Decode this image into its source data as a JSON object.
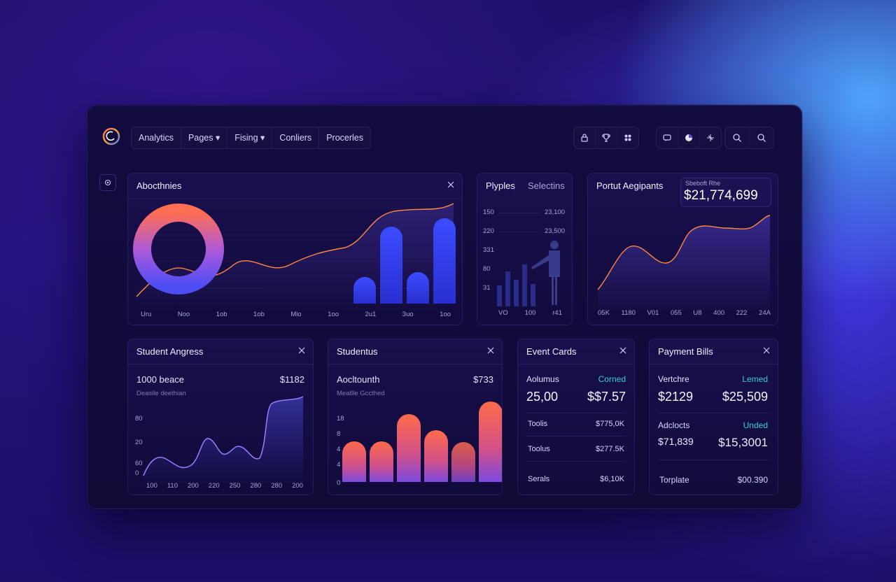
{
  "nav": {
    "items": [
      {
        "label": "Analytics"
      },
      {
        "label": "Pages ▾"
      },
      {
        "label": "Fising ▾"
      },
      {
        "label": "Conliers"
      },
      {
        "label": "Procerles"
      }
    ]
  },
  "toolbar": {
    "group1_icons": [
      "lock-icon",
      "trophy-icon",
      "grid-icon"
    ],
    "group2_icons": [
      "chat-icon",
      "pie-icon",
      "sparkle-icon"
    ],
    "group3_icons": [
      "search-icon",
      "search-icon"
    ]
  },
  "colors": {
    "accent": "#4a4df5",
    "orange": "#ff6e4a",
    "teal": "#35d0d0",
    "purple": "#9b7dff"
  },
  "cards": {
    "activities": {
      "title": "Abocthnies",
      "x_labels": [
        "Uru",
        "Noo",
        "1ob",
        "1ob",
        "Mio",
        "1oo",
        "2u1",
        "3uo",
        "1oo"
      ]
    },
    "players": {
      "title_a": "Plyples",
      "title_b": "Selectins",
      "rows": [
        {
          "left": "150",
          "right": "23,100"
        },
        {
          "left": "220",
          "right": "23,500"
        },
        {
          "left": "331",
          "right": ""
        },
        {
          "left": "80",
          "right": ""
        },
        {
          "left": "31",
          "right": ""
        }
      ],
      "x_labels": [
        "VO",
        "100",
        "r41"
      ]
    },
    "payment": {
      "title": "Portut Aegipants",
      "badge_label": "Sbeboft Rhe",
      "badge_value": "$21,774,699",
      "x_labels": [
        "05K",
        "1180",
        "V01",
        "055",
        "U8",
        "400",
        "222",
        "24A"
      ]
    },
    "student_progress": {
      "title": "Student Angress",
      "stat_label": "1000 beace",
      "stat_value": "$1182",
      "sub": "Deaslle deethian",
      "y_labels": [
        "80",
        "20",
        "60",
        "0"
      ],
      "x_labels": [
        "100",
        "110",
        "200",
        "220",
        "250",
        "280",
        "280",
        "200"
      ]
    },
    "students": {
      "title": "Studentus",
      "stat_label": "Aocltounth",
      "stat_value": "$733",
      "sub": "Meatlle Gccthed",
      "y_labels": [
        "18",
        "8",
        "4",
        "4",
        "4",
        "0"
      ]
    },
    "event_cards": {
      "title": "Event Cards",
      "head_left": "Aolumus",
      "head_right": "Corned",
      "big_left": "25,00",
      "big_right": "$$7.57",
      "rows": [
        {
          "label": "Toolis",
          "value": "$775,0K"
        },
        {
          "label": "Toolus",
          "value": "$277.5K"
        },
        {
          "label": "Serals",
          "value": "$6,10K"
        }
      ]
    },
    "payment_bills": {
      "title": "Payment Bills",
      "head_left": "Vertchre",
      "head_right": "Lemed",
      "big_left": "$2129",
      "big_right": "$25,509",
      "sub_left": "Adclocts",
      "sub_right": "Unded",
      "mid_left": "$71,839",
      "mid_right": "$15,3001",
      "foot_left": "Torplate",
      "foot_right": "$00.390"
    }
  },
  "chart_data": [
    {
      "type": "bar",
      "title": "Abocthnies",
      "values": [
        38,
        110,
        45,
        122
      ]
    },
    {
      "type": "bar",
      "title": "Studentus",
      "values": [
        58,
        58,
        97,
        74,
        57,
        115
      ]
    }
  ]
}
